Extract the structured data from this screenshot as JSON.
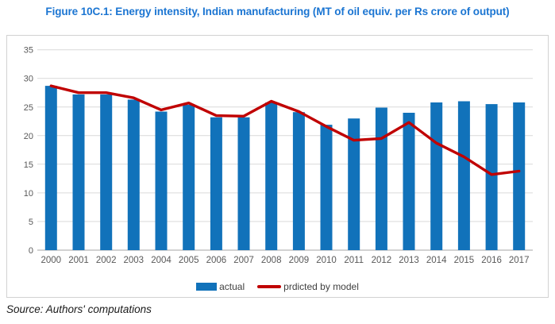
{
  "title": "Figure 10C.1: Energy intensity, Indian manufacturing (MT of oil equiv. per Rs crore of output)",
  "source_note": "Source: Authors' computations",
  "legend": {
    "actual_label": "actual",
    "predicted_label": "prdicted by model"
  },
  "colors": {
    "title": "#1B75D2",
    "bar": "#1172BA",
    "line": "#C00000",
    "grid": "#D9D9D9",
    "axis": "#A6A6A6",
    "tick_text": "#595959"
  },
  "chart_data": {
    "type": "bar",
    "title": "Figure 10C.1: Energy intensity, Indian manufacturing (MT of oil equiv. per Rs crore of output)",
    "categories": [
      "2000",
      "2001",
      "2002",
      "2003",
      "2004",
      "2005",
      "2006",
      "2007",
      "2008",
      "2009",
      "2010",
      "2011",
      "2012",
      "2013",
      "2014",
      "2015",
      "2016",
      "2017"
    ],
    "series": [
      {
        "name": "actual",
        "type": "bar",
        "values": [
          28.7,
          27.2,
          27.2,
          26.3,
          24.2,
          25.4,
          23.2,
          23.2,
          25.8,
          24.1,
          21.9,
          23.0,
          24.9,
          24.0,
          25.8,
          26.0,
          25.5,
          25.8
        ]
      },
      {
        "name": "prdicted by model",
        "type": "line",
        "values": [
          28.7,
          27.5,
          27.5,
          26.6,
          24.5,
          25.7,
          23.5,
          23.4,
          26.0,
          24.2,
          21.6,
          19.2,
          19.5,
          22.3,
          18.7,
          16.3,
          13.2,
          13.8
        ]
      }
    ],
    "xlabel": "",
    "ylabel": "",
    "ylim": [
      0,
      35
    ],
    "ytick_step": 5,
    "grid": "on",
    "legend_position": "bottom"
  }
}
